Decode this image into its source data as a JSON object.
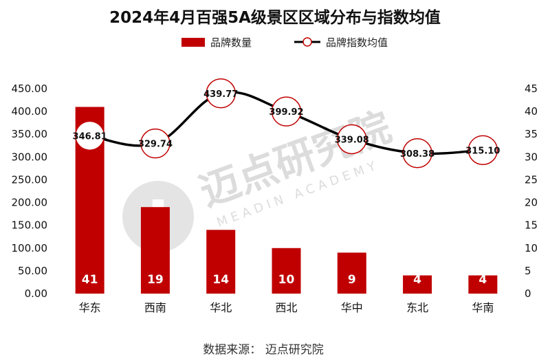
{
  "chart_data": {
    "type": "bar+line",
    "title": "2024年4月百强5A级景区区域分布与指数均值",
    "categories": [
      "华东",
      "西南",
      "华北",
      "西北",
      "华中",
      "东北",
      "华南"
    ],
    "series": [
      {
        "name": "品牌数量",
        "type": "bar",
        "axis": "right",
        "values": [
          41,
          19,
          14,
          10,
          9,
          4,
          4
        ]
      },
      {
        "name": "品牌指数均值",
        "type": "line",
        "axis": "left",
        "values": [
          346.81,
          329.74,
          439.77,
          399.92,
          339.08,
          308.38,
          315.1
        ],
        "labels": [
          "346.81",
          "329.74",
          "439.77",
          "399.92",
          "339.08",
          "308.38",
          "315.10"
        ]
      }
    ],
    "left_axis": {
      "ylim": [
        0,
        450
      ],
      "ticks": [
        "0.00",
        "50.00",
        "100.00",
        "150.00",
        "200.00",
        "250.00",
        "300.00",
        "350.00",
        "400.00",
        "450.00"
      ]
    },
    "right_axis": {
      "ylim": [
        0,
        45
      ],
      "ticks": [
        "0",
        "5",
        "10",
        "15",
        "20",
        "25",
        "30",
        "35",
        "40",
        "45"
      ]
    },
    "legend": [
      "品牌数量",
      "品牌指数均值"
    ],
    "source": "数据来源： 迈点研究院",
    "watermark": {
      "text": "迈点研究院",
      "sub": "MEADIN ACADEMY"
    },
    "colors": {
      "bar": "#c00000",
      "line": "#000000",
      "marker_edge": "#c00000",
      "marker_fill": "#ffffff"
    }
  }
}
